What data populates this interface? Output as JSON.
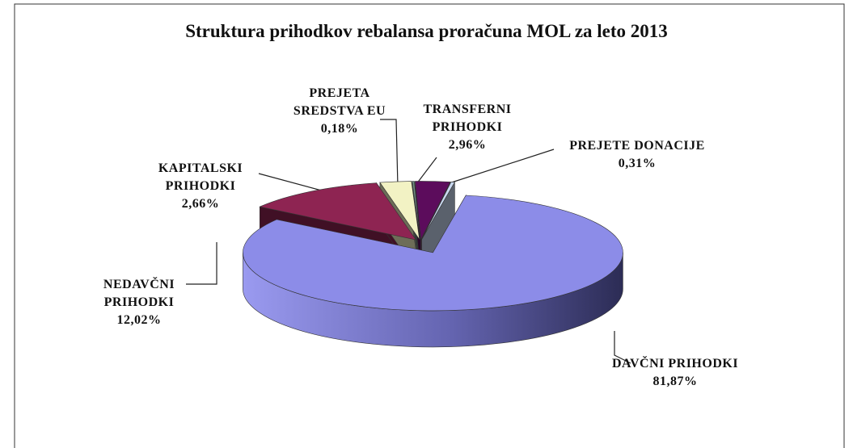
{
  "chart_data": {
    "type": "pie3d",
    "title": "Struktura prihodkov rebalansa proračuna MOL za leto 2013",
    "categories": [
      "DAVČNI PRIHODKI",
      "NEDAVČNI PRIHODKI",
      "KAPITALSKI PRIHODKI",
      "PREJETA SREDSTVA EU",
      "TRANSFERNI PRIHODKI",
      "PREJETE DONACIJE"
    ],
    "values": [
      81.87,
      12.02,
      2.66,
      0.18,
      2.96,
      0.31
    ],
    "value_labels": [
      "81,87%",
      "12,02%",
      "2,66%",
      "0,18%",
      "2,96%",
      "0,31%"
    ],
    "colors": [
      "#8c8ce8",
      "#8e2452",
      "#f2f2c4",
      "#6f8a80",
      "#5c0c5c",
      "#c8d8f0"
    ]
  }
}
